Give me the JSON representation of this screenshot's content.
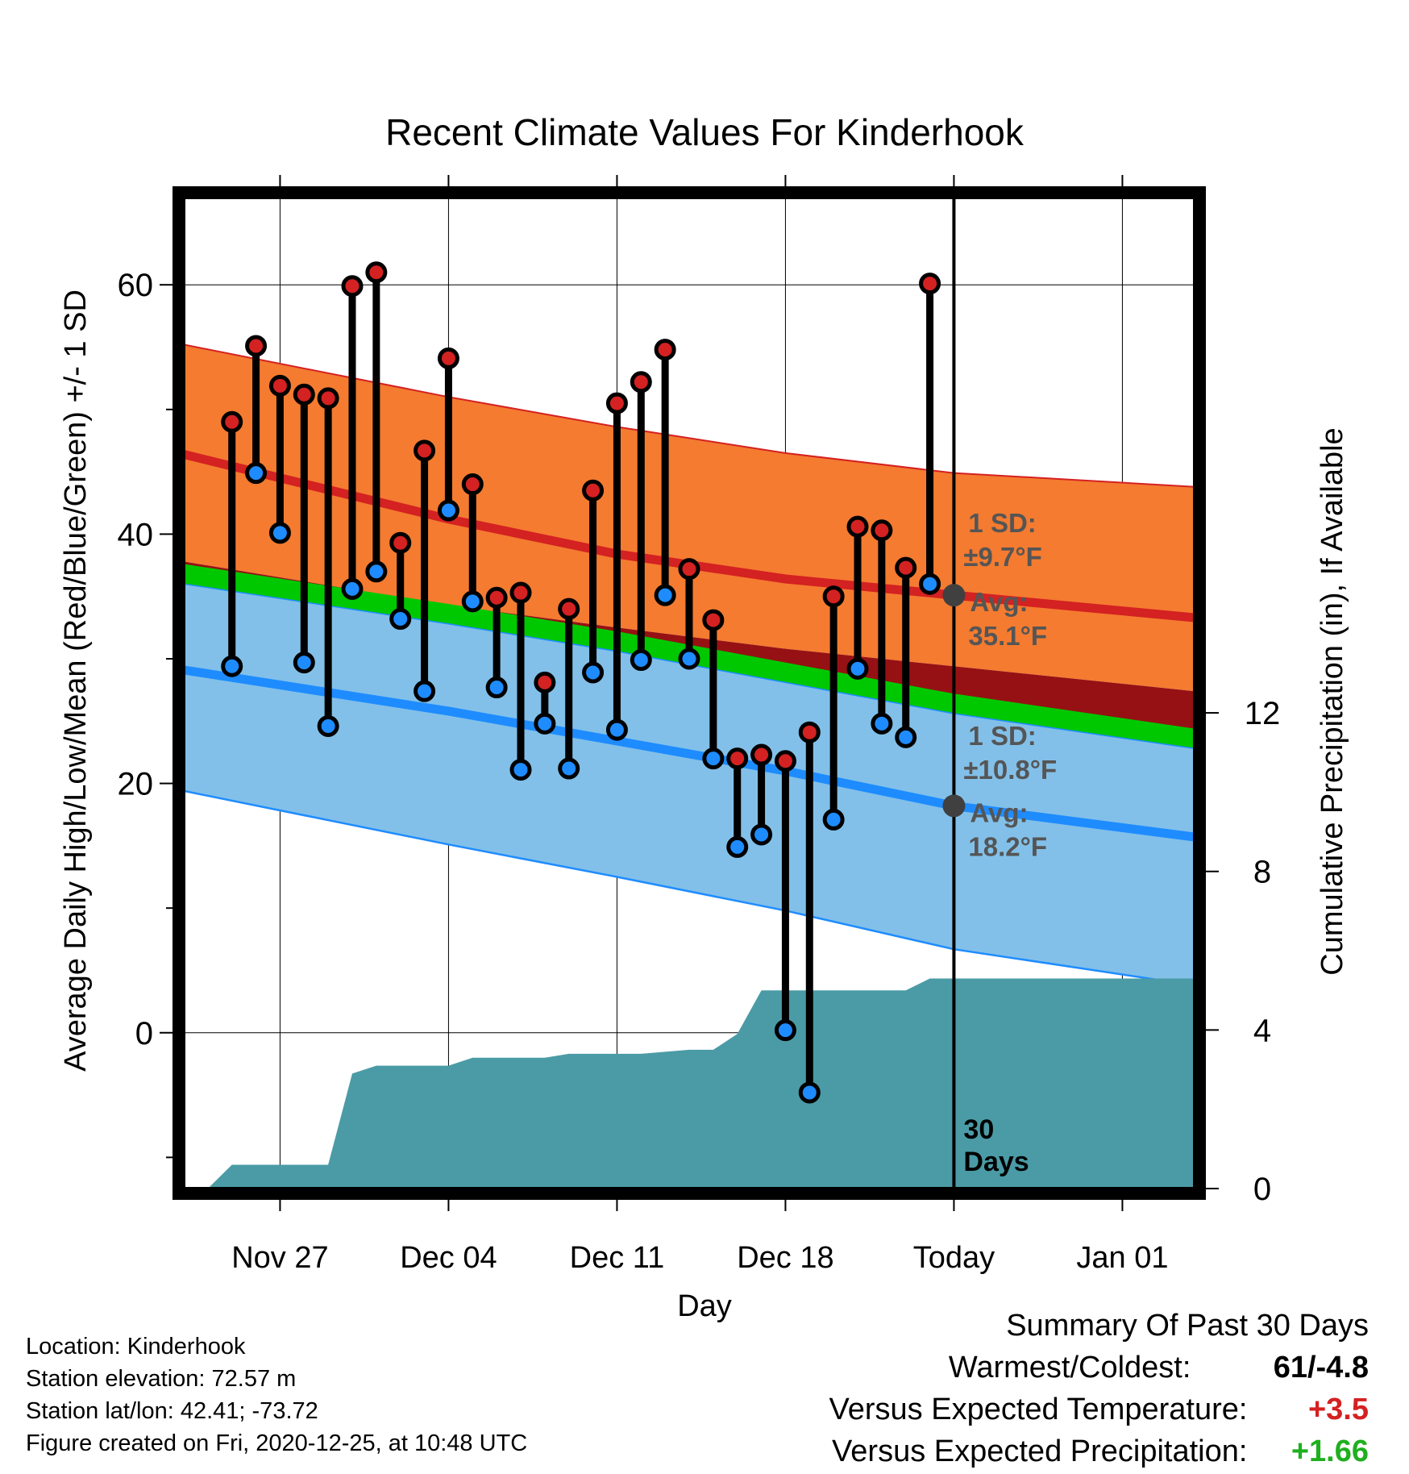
{
  "colors": {
    "high_band": "#f47b30",
    "high_mean": "#d42121",
    "mean_band": "#961114",
    "mean_line": "#00c800",
    "low_band": "#82c0e9",
    "low_mean": "#1e8cff",
    "precip": "#4a9ba6",
    "high_dot": "#d42121",
    "low_dot": "#1e8cff",
    "warm_value": "#d42121",
    "precip_value": "#1faf1f"
  },
  "chart_data": {
    "type": "line",
    "title": "Recent Climate Values For Kinderhook",
    "xlabel": "Day",
    "ylabel": "Average Daily High/Low/Mean (Red/Blue/Green) +/- 1 SD",
    "y2label": "Cumulative Precipitation (in), If Available",
    "xlim": [
      "2020-11-23",
      "2021-01-04"
    ],
    "ylim": [
      -12.5,
      67
    ],
    "y2lim": [
      0,
      25
    ],
    "grid": true,
    "x_ticks": [
      {
        "date": "2020-11-27",
        "label": "Nov 27"
      },
      {
        "date": "2020-12-04",
        "label": "Dec 04"
      },
      {
        "date": "2020-12-11",
        "label": "Dec 11"
      },
      {
        "date": "2020-12-18",
        "label": "Dec 18"
      },
      {
        "date": "2020-12-25",
        "label": "Today"
      },
      {
        "date": "2021-01-01",
        "label": "Jan 01"
      }
    ],
    "y_ticks": [
      0,
      20,
      40,
      60
    ],
    "y2_ticks": [
      0,
      4,
      8,
      12
    ],
    "today": "2020-12-25",
    "today_label": "30 Days",
    "high_avg": {
      "x": [
        "2020-11-23",
        "2020-12-04",
        "2020-12-11",
        "2020-12-18",
        "2020-12-25",
        "2021-01-04"
      ],
      "mean": [
        46.4,
        41.2,
        38.4,
        36.4,
        35.1,
        33.3
      ],
      "upper": [
        55.2,
        51.0,
        48.6,
        46.5,
        44.9,
        43.8
      ],
      "lower": [
        37.8,
        34.3,
        32.5,
        30.8,
        29.4,
        27.4
      ]
    },
    "low_avg": {
      "x": [
        "2020-11-23",
        "2020-12-04",
        "2020-12-11",
        "2020-12-18",
        "2020-12-25",
        "2021-01-04"
      ],
      "mean": [
        29.1,
        25.8,
        23.4,
        21.0,
        18.2,
        15.7
      ],
      "upper": [
        36.0,
        32.8,
        30.6,
        28.1,
        25.6,
        22.8
      ],
      "lower": [
        19.4,
        15.1,
        12.5,
        9.8,
        6.7,
        3.8
      ]
    },
    "daily_mean": {
      "x": [
        "2020-11-23",
        "2020-12-04",
        "2020-12-11",
        "2020-12-18",
        "2020-12-25",
        "2021-01-04"
      ],
      "upper": [
        37.8,
        34.3,
        32.5,
        30.8,
        29.4,
        27.4
      ],
      "lower": [
        36.0,
        32.8,
        30.6,
        28.1,
        25.6,
        22.8
      ]
    },
    "observed": [
      {
        "date": "2020-11-25",
        "high": 49,
        "low": 29.4
      },
      {
        "date": "2020-11-26",
        "high": 55.1,
        "low": 44.9
      },
      {
        "date": "2020-11-27",
        "high": 51.9,
        "low": 40.1
      },
      {
        "date": "2020-11-28",
        "high": 51.2,
        "low": 29.7
      },
      {
        "date": "2020-11-29",
        "high": 50.9,
        "low": 24.6
      },
      {
        "date": "2020-11-30",
        "high": 59.9,
        "low": 35.6
      },
      {
        "date": "2020-12-01",
        "high": 61,
        "low": 37.0
      },
      {
        "date": "2020-12-02",
        "high": 39.3,
        "low": 33.2
      },
      {
        "date": "2020-12-03",
        "high": 46.7,
        "low": 27.4
      },
      {
        "date": "2020-12-04",
        "high": 54.1,
        "low": 41.9
      },
      {
        "date": "2020-12-05",
        "high": 44.0,
        "low": 34.6
      },
      {
        "date": "2020-12-06",
        "high": 34.9,
        "low": 27.7
      },
      {
        "date": "2020-12-07",
        "high": 35.3,
        "low": 21.1
      },
      {
        "date": "2020-12-08",
        "high": 28.1,
        "low": 24.8
      },
      {
        "date": "2020-12-09",
        "high": 34.0,
        "low": 21.2
      },
      {
        "date": "2020-12-10",
        "high": 43.5,
        "low": 28.9
      },
      {
        "date": "2020-12-11",
        "high": 50.5,
        "low": 24.3
      },
      {
        "date": "2020-12-12",
        "high": 52.2,
        "low": 29.9
      },
      {
        "date": "2020-12-13",
        "high": 54.8,
        "low": 35.1
      },
      {
        "date": "2020-12-14",
        "high": 37.2,
        "low": 30.0
      },
      {
        "date": "2020-12-15",
        "high": 33.1,
        "low": 22.0
      },
      {
        "date": "2020-12-16",
        "high": 22.0,
        "low": 14.9
      },
      {
        "date": "2020-12-17",
        "high": 22.3,
        "low": 15.9
      },
      {
        "date": "2020-12-18",
        "high": 21.8,
        "low": 0.2
      },
      {
        "date": "2020-12-19",
        "high": 24.1,
        "low": -4.8
      },
      {
        "date": "2020-12-20",
        "high": 35.0,
        "low": 17.1
      },
      {
        "date": "2020-12-21",
        "high": 40.6,
        "low": 29.2
      },
      {
        "date": "2020-12-22",
        "high": 40.3,
        "low": 24.8
      },
      {
        "date": "2020-12-23",
        "high": 37.3,
        "low": 23.7
      },
      {
        "date": "2020-12-24",
        "high": 60.1,
        "low": 36.0
      }
    ],
    "precipitation": [
      {
        "date": "2020-11-24",
        "value": 0
      },
      {
        "date": "2020-11-25",
        "value": 0.6
      },
      {
        "date": "2020-11-26",
        "value": 0.6
      },
      {
        "date": "2020-11-27",
        "value": 0.6
      },
      {
        "date": "2020-11-28",
        "value": 0.6
      },
      {
        "date": "2020-11-29",
        "value": 0.6
      },
      {
        "date": "2020-11-30",
        "value": 2.9
      },
      {
        "date": "2020-12-01",
        "value": 3.1
      },
      {
        "date": "2020-12-02",
        "value": 3.1
      },
      {
        "date": "2020-12-03",
        "value": 3.1
      },
      {
        "date": "2020-12-04",
        "value": 3.1
      },
      {
        "date": "2020-12-05",
        "value": 3.3
      },
      {
        "date": "2020-12-06",
        "value": 3.3
      },
      {
        "date": "2020-12-07",
        "value": 3.3
      },
      {
        "date": "2020-12-08",
        "value": 3.3
      },
      {
        "date": "2020-12-09",
        "value": 3.4
      },
      {
        "date": "2020-12-10",
        "value": 3.4
      },
      {
        "date": "2020-12-11",
        "value": 3.4
      },
      {
        "date": "2020-12-12",
        "value": 3.4
      },
      {
        "date": "2020-12-13",
        "value": 3.45
      },
      {
        "date": "2020-12-14",
        "value": 3.5
      },
      {
        "date": "2020-12-15",
        "value": 3.5
      },
      {
        "date": "2020-12-16",
        "value": 3.9
      },
      {
        "date": "2020-12-17",
        "value": 5.0
      },
      {
        "date": "2020-12-18",
        "value": 5.0
      },
      {
        "date": "2020-12-19",
        "value": 5.0
      },
      {
        "date": "2020-12-20",
        "value": 5.0
      },
      {
        "date": "2020-12-21",
        "value": 5.0
      },
      {
        "date": "2020-12-22",
        "value": 5.0
      },
      {
        "date": "2020-12-23",
        "value": 5.0
      },
      {
        "date": "2020-12-24",
        "value": 5.3
      },
      {
        "date": "2021-01-04",
        "value": 5.3
      }
    ],
    "annotations": {
      "high": {
        "sd_label": "1 SD:",
        "sd_value": "±9.7°F",
        "avg_label": "Avg:",
        "avg_value": "35.1°F",
        "avg": 35.1
      },
      "low": {
        "sd_label": "1 SD:",
        "sd_value": "±10.8°F",
        "avg_label": "Avg:",
        "avg_value": "18.2°F",
        "avg": 18.2
      }
    }
  },
  "info": {
    "location": "Location: Kinderhook",
    "elevation": "Station elevation: 72.57 m",
    "latlon": "Station lat/lon: 42.41; -73.72",
    "created": "Figure created on Fri, 2020-12-25, at 10:48 UTC"
  },
  "summary": {
    "title": "Summary Of Past 30 Days",
    "warmest_coldest_label": "Warmest/Coldest:",
    "warmest_coldest_value": "61/-4.8",
    "temp_label": "Versus Expected Temperature:",
    "temp_value": "+3.5",
    "precip_label": "Versus Expected Precipitation:",
    "precip_value": "+1.66"
  }
}
